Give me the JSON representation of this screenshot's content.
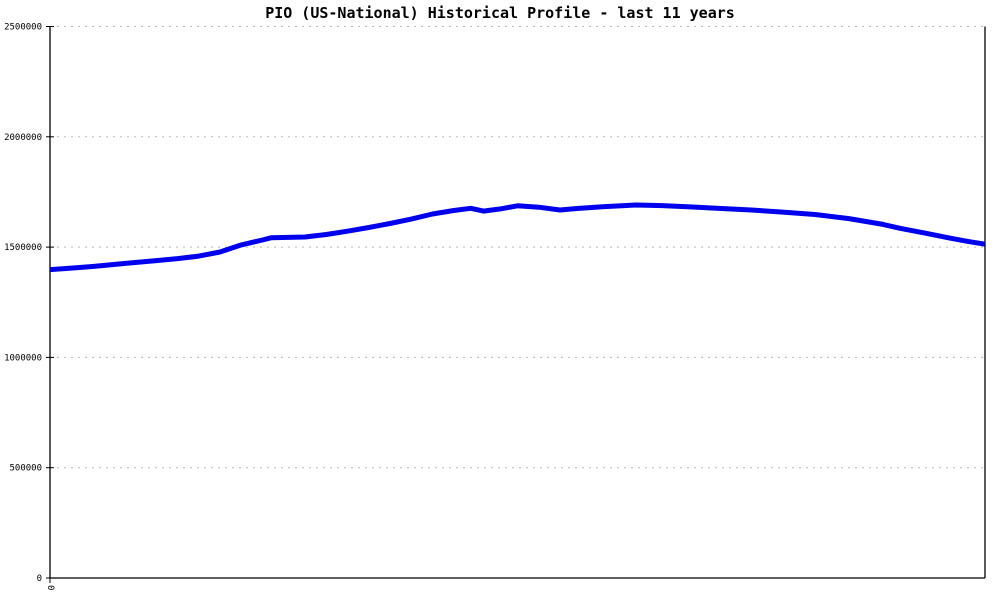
{
  "chart_data": {
    "type": "line",
    "title": "PIO (US-National) Historical Profile - last 11 years",
    "xlabel": "",
    "ylabel": "",
    "xlim": [
      0,
      11
    ],
    "ylim": [
      0,
      2500000
    ],
    "y_ticks": [
      0,
      500000,
      1000000,
      1500000,
      2000000,
      2500000
    ],
    "x_ticks": [
      {
        "x": 0,
        "label": "0",
        "rotated": true
      }
    ],
    "grid": "horizontal-dashed",
    "legend_position": "none",
    "colors": {
      "line": "#0000ee",
      "grid": "#b8b8b8",
      "axis": "#000000",
      "text": "#000000",
      "background": "#ffffff"
    },
    "series": [
      {
        "name": "PIO (US-National)",
        "points": [
          [
            0.0,
            1398000
          ],
          [
            0.25,
            1405000
          ],
          [
            0.5,
            1412000
          ],
          [
            0.75,
            1421000
          ],
          [
            1.0,
            1430000
          ],
          [
            1.25,
            1439000
          ],
          [
            1.5,
            1448000
          ],
          [
            1.75,
            1459000
          ],
          [
            2.0,
            1478000
          ],
          [
            2.25,
            1510000
          ],
          [
            2.5,
            1532000
          ],
          [
            2.6,
            1542000
          ],
          [
            3.0,
            1546000
          ],
          [
            3.25,
            1557000
          ],
          [
            3.5,
            1572000
          ],
          [
            3.75,
            1589000
          ],
          [
            4.0,
            1607000
          ],
          [
            4.25,
            1627000
          ],
          [
            4.5,
            1650000
          ],
          [
            4.75,
            1666000
          ],
          [
            4.95,
            1676000
          ],
          [
            5.1,
            1663000
          ],
          [
            5.3,
            1673000
          ],
          [
            5.5,
            1687000
          ],
          [
            5.75,
            1681000
          ],
          [
            6.0,
            1668000
          ],
          [
            6.2,
            1675000
          ],
          [
            6.5,
            1683000
          ],
          [
            6.9,
            1691000
          ],
          [
            7.2,
            1688000
          ],
          [
            7.5,
            1683000
          ],
          [
            7.9,
            1675000
          ],
          [
            8.25,
            1668000
          ],
          [
            8.6,
            1659000
          ],
          [
            9.0,
            1648000
          ],
          [
            9.4,
            1629000
          ],
          [
            9.8,
            1603000
          ],
          [
            10.0,
            1585000
          ],
          [
            10.3,
            1563000
          ],
          [
            10.6,
            1540000
          ],
          [
            10.8,
            1526000
          ],
          [
            11.0,
            1513000
          ]
        ]
      }
    ]
  }
}
